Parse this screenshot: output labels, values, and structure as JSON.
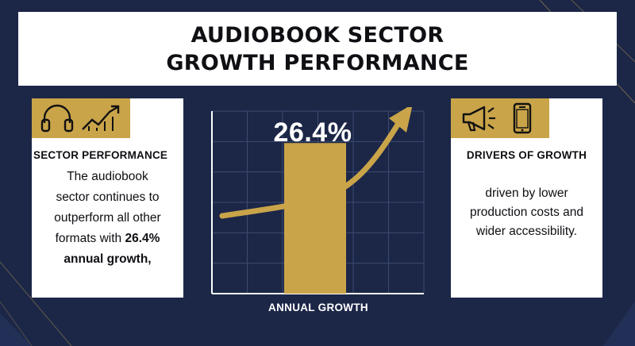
{
  "title": {
    "line1": "AUDIOBOOK SECTOR",
    "line2": "GROWTH PERFORMANCE"
  },
  "colors": {
    "background": "#1c2747",
    "gold": "#c9a449",
    "card": "#ffffff",
    "text": "#0f0f14"
  },
  "left_card": {
    "icons": [
      "headphones-icon",
      "trend-up-icon"
    ],
    "heading": "SECTOR PERFORMANCE",
    "body_lines": [
      "The audiobook",
      "sector continues to",
      "outperform all other",
      "formats with "
    ],
    "body_highlight_1": "26.4%",
    "body_highlight_2": "annual growth,"
  },
  "right_card": {
    "icons": [
      "megaphone-icon",
      "smartphone-icon"
    ],
    "heading": "DRIVERS OF GROWTH",
    "body_lines": [
      "driven by lower",
      "production costs and",
      "wider accessibility."
    ]
  },
  "chart_data": {
    "type": "bar",
    "categories": [
      ""
    ],
    "values": [
      26.4
    ],
    "data_label": "26.4%",
    "xlabel": "ANNUAL GROWTH",
    "ylabel": "",
    "grid": true,
    "bar_color": "#c9a449",
    "trend_arrow": "up"
  }
}
